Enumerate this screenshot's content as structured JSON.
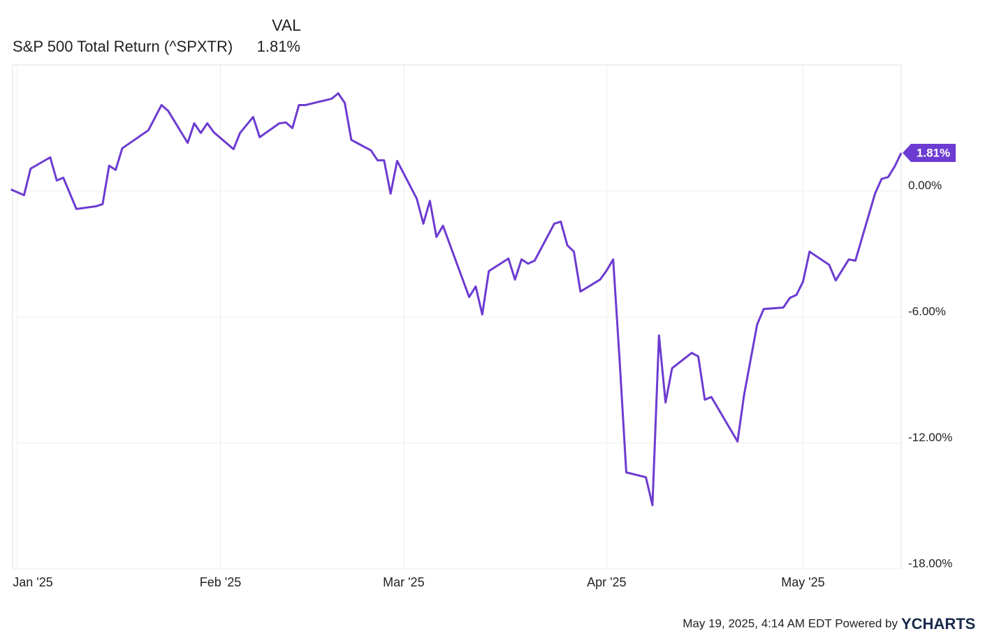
{
  "chart_data": {
    "type": "line",
    "legend_header": "VAL",
    "x": [
      -1,
      1,
      2,
      5,
      6,
      7,
      9,
      12,
      13,
      14,
      15,
      16,
      20,
      21,
      22,
      23,
      26,
      27,
      28,
      29,
      30,
      33,
      34,
      36,
      37,
      40,
      41,
      42,
      43,
      44,
      48,
      49,
      50,
      51,
      54,
      55,
      56,
      57,
      58,
      61,
      62,
      63,
      64,
      65,
      69,
      70,
      71,
      72,
      75,
      76,
      77,
      78,
      79,
      82,
      83,
      84,
      85,
      86,
      89,
      90,
      91,
      92,
      93,
      96,
      97,
      98,
      99,
      100,
      103,
      104,
      105,
      106,
      110,
      111,
      113,
      114,
      117,
      118,
      119,
      120,
      121,
      124,
      125,
      127,
      128,
      131,
      132,
      133,
      134,
      135
    ],
    "series": [
      {
        "name": "S&P 500 Total Return (^SPXTR)",
        "color": "#6c3bd1",
        "values": [
          0.07,
          -0.2,
          1.06,
          1.6,
          0.5,
          0.63,
          -0.86,
          -0.73,
          -0.63,
          1.2,
          1.0,
          2.03,
          2.89,
          3.49,
          4.09,
          3.82,
          2.29,
          3.22,
          2.76,
          3.22,
          2.79,
          1.99,
          2.76,
          3.52,
          2.56,
          3.22,
          3.26,
          2.99,
          4.09,
          4.09,
          4.39,
          4.65,
          4.19,
          2.43,
          1.93,
          1.46,
          1.46,
          -0.13,
          1.43,
          -0.37,
          -1.56,
          -0.47,
          -2.19,
          -1.66,
          -5.05,
          -4.55,
          -5.88,
          -3.82,
          -3.22,
          -4.22,
          -3.26,
          -3.46,
          -3.32,
          -1.56,
          -1.46,
          -2.59,
          -2.89,
          -4.79,
          -4.22,
          -3.79,
          -3.26,
          -8.14,
          -13.4,
          -13.63,
          -14.96,
          -6.88,
          -10.07,
          -8.44,
          -7.71,
          -7.88,
          -9.94,
          -9.81,
          -11.93,
          -9.71,
          -6.35,
          -5.62,
          -5.55,
          -5.09,
          -4.95,
          -4.32,
          -2.89,
          -3.52,
          -4.26,
          -3.26,
          -3.32,
          -0.13,
          0.57,
          0.66,
          1.16,
          1.81
        ],
        "value_labels": [
          null,
          null,
          null,
          null,
          null,
          null,
          null,
          null,
          null,
          null,
          null,
          null,
          null,
          null,
          null,
          null,
          null,
          null,
          null,
          null,
          null,
          null,
          null,
          null,
          null,
          null,
          null,
          null,
          null,
          null,
          null,
          null,
          null,
          null,
          null,
          null,
          null,
          null,
          null,
          null,
          null,
          null,
          null,
          null,
          null,
          null,
          null,
          null,
          null,
          null,
          null,
          null,
          null,
          null,
          null,
          null,
          null,
          null,
          null,
          null,
          null,
          null,
          null,
          null,
          null,
          null,
          null,
          null,
          null,
          null,
          null,
          null,
          null,
          null,
          null,
          null,
          null,
          null,
          null,
          null,
          null,
          null,
          null,
          null,
          null,
          null,
          null,
          null,
          null,
          "1.81%"
        ]
      }
    ],
    "xlim": [
      -0.75,
      135
    ],
    "xticks": [
      {
        "value": 0,
        "label": "Jan '25"
      },
      {
        "value": 31,
        "label": "Feb '25"
      },
      {
        "value": 59,
        "label": "Mar '25"
      },
      {
        "value": 90,
        "label": "Apr '25"
      },
      {
        "value": 120,
        "label": "May '25"
      }
    ],
    "ylim": [
      -18,
      6
    ],
    "yticks": [
      {
        "value": -18,
        "label": "-18.00%"
      },
      {
        "value": -12,
        "label": "-12.00%"
      },
      {
        "value": -6,
        "label": "-6.00%"
      },
      {
        "value": 0,
        "label": "0.00%"
      }
    ],
    "grid": true,
    "footer": "May 19, 2025, 4:14 AM EDT Powered by",
    "brand": "YCHARTS"
  }
}
